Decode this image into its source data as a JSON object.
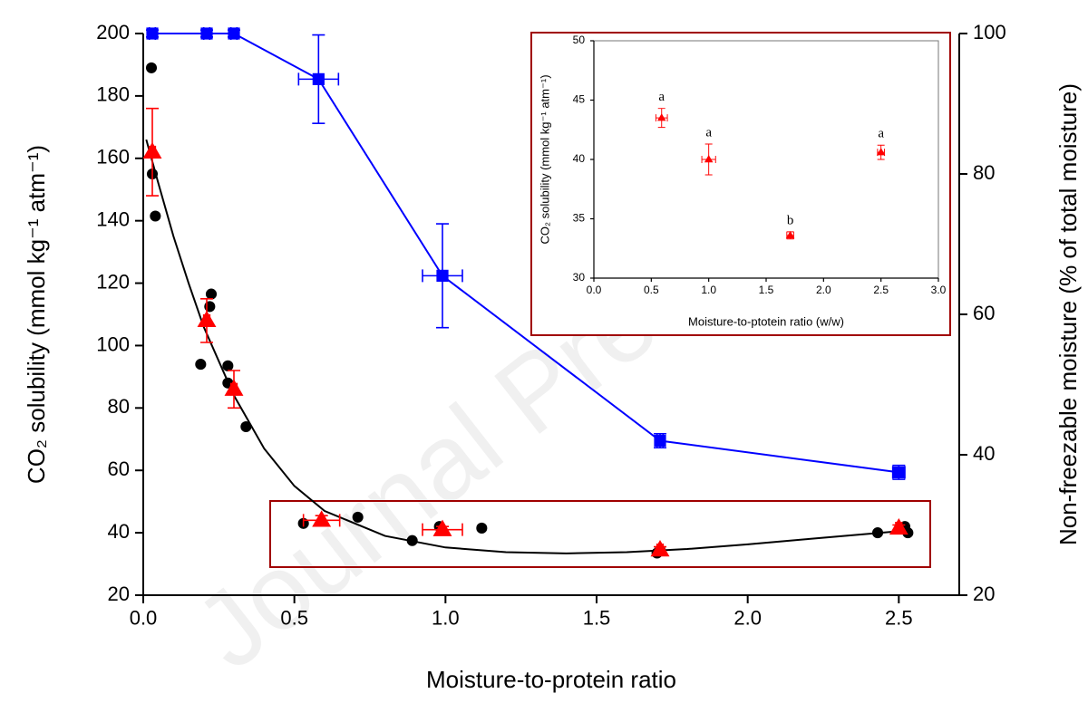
{
  "watermark": "Journal Pre-proofs",
  "chart_data": [
    {
      "type": "scatter",
      "xlabel": "Moisture-to-protein ratio",
      "ylabel": "CO₂ solubility (mmol kg⁻¹ atm⁻¹)",
      "y2label": "Non-freezable moisture (% of total moisture)",
      "xlim": [
        0,
        2.7
      ],
      "xticks": [
        {
          "value": 0,
          "label": "0.0"
        },
        0.5,
        {
          "value": 1,
          "label": "1.0"
        },
        1.5,
        {
          "value": 2,
          "label": "2.0"
        },
        2.5
      ],
      "ylim": [
        20,
        200
      ],
      "yticks": [
        20,
        40,
        60,
        80,
        100,
        120,
        140,
        160,
        180,
        200
      ],
      "y2lim": [
        20,
        100
      ],
      "y2ticks": [
        20,
        40,
        60,
        80,
        100
      ],
      "series": [
        {
          "type": "scatter",
          "marker": "circle",
          "color": "#000000",
          "x": [
            0.027,
            0.03,
            0.04,
            0.19,
            0.22,
            0.225,
            0.28,
            0.28,
            0.34,
            0.53,
            0.71,
            0.89,
            0.98,
            1.12,
            1.7,
            1.71,
            2.43,
            2.52,
            2.53
          ],
          "values": [
            189,
            155,
            141.5,
            94,
            112.5,
            116.5,
            93.5,
            88,
            74,
            43,
            45,
            37.5,
            42,
            41.5,
            33.5,
            34.5,
            40,
            42,
            40
          ]
        },
        {
          "type": "line",
          "color": "#000000",
          "x": [
            0.01,
            0.05,
            0.1,
            0.15,
            0.2,
            0.3,
            0.4,
            0.5,
            0.6,
            0.8,
            1.0,
            1.2,
            1.4,
            1.6,
            1.8,
            2.0,
            2.2,
            2.5
          ],
          "values": [
            166,
            152,
            135,
            120,
            106,
            84,
            67,
            55,
            47,
            39,
            35.3,
            33.8,
            33.4,
            33.8,
            34.8,
            36.3,
            38,
            40.5
          ]
        },
        {
          "type": "scatter",
          "marker": "triangle",
          "color": "#ff0000",
          "x": [
            0.03,
            0.21,
            0.3,
            0.59,
            0.99,
            1.71,
            2.5
          ],
          "values": [
            162,
            108,
            86,
            44,
            41,
            34.5,
            41.5
          ],
          "yerr": [
            14,
            7,
            6,
            1.5,
            1,
            1,
            1
          ],
          "xerr": [
            0.01,
            0.01,
            0.01,
            0.06,
            0.066,
            0.01,
            0.01
          ]
        },
        {
          "type": "line",
          "marker": "square",
          "color": "#0000ff",
          "axis": "y2",
          "x": [
            0.03,
            0.21,
            0.3,
            0.58,
            0.99,
            1.71,
            2.5
          ],
          "values": [
            100,
            100,
            100,
            93.5,
            65.5,
            42,
            37.5
          ],
          "yerr": [
            0.5,
            0.5,
            0.5,
            6.3,
            7.4,
            1,
            1
          ],
          "xerr": [
            0.01,
            0.01,
            0.01,
            0.066,
            0.066,
            0.01,
            0.02
          ]
        }
      ]
    },
    {
      "type": "scatter",
      "xlabel": "Moisture-to-ptotein ratio (w/w)",
      "ylabel": "CO₂ solubility (mmol kg⁻¹ atm⁻¹)",
      "xlim": [
        0,
        3
      ],
      "xticks": [
        {
          "value": 0,
          "label": "0.0"
        },
        0.5,
        {
          "value": 1,
          "label": "1.0"
        },
        1.5,
        {
          "value": 2,
          "label": "2.0"
        },
        2.5,
        {
          "value": 3,
          "label": "3.0"
        }
      ],
      "ylim": [
        30,
        50
      ],
      "yticks": [
        30,
        35,
        40,
        45,
        50
      ],
      "series": [
        {
          "type": "scatter",
          "marker": "triangle",
          "color": "#ff0000",
          "x": [
            0.59,
            1.0,
            1.71,
            2.5
          ],
          "values": [
            43.5,
            40,
            33.6,
            40.6
          ],
          "yerr": [
            0.8,
            1.3,
            0.3,
            0.6
          ],
          "xerr": [
            0.05,
            0.06,
            0.03,
            0.03
          ],
          "annotations": [
            "a",
            "a",
            "b",
            "a"
          ]
        }
      ]
    }
  ]
}
